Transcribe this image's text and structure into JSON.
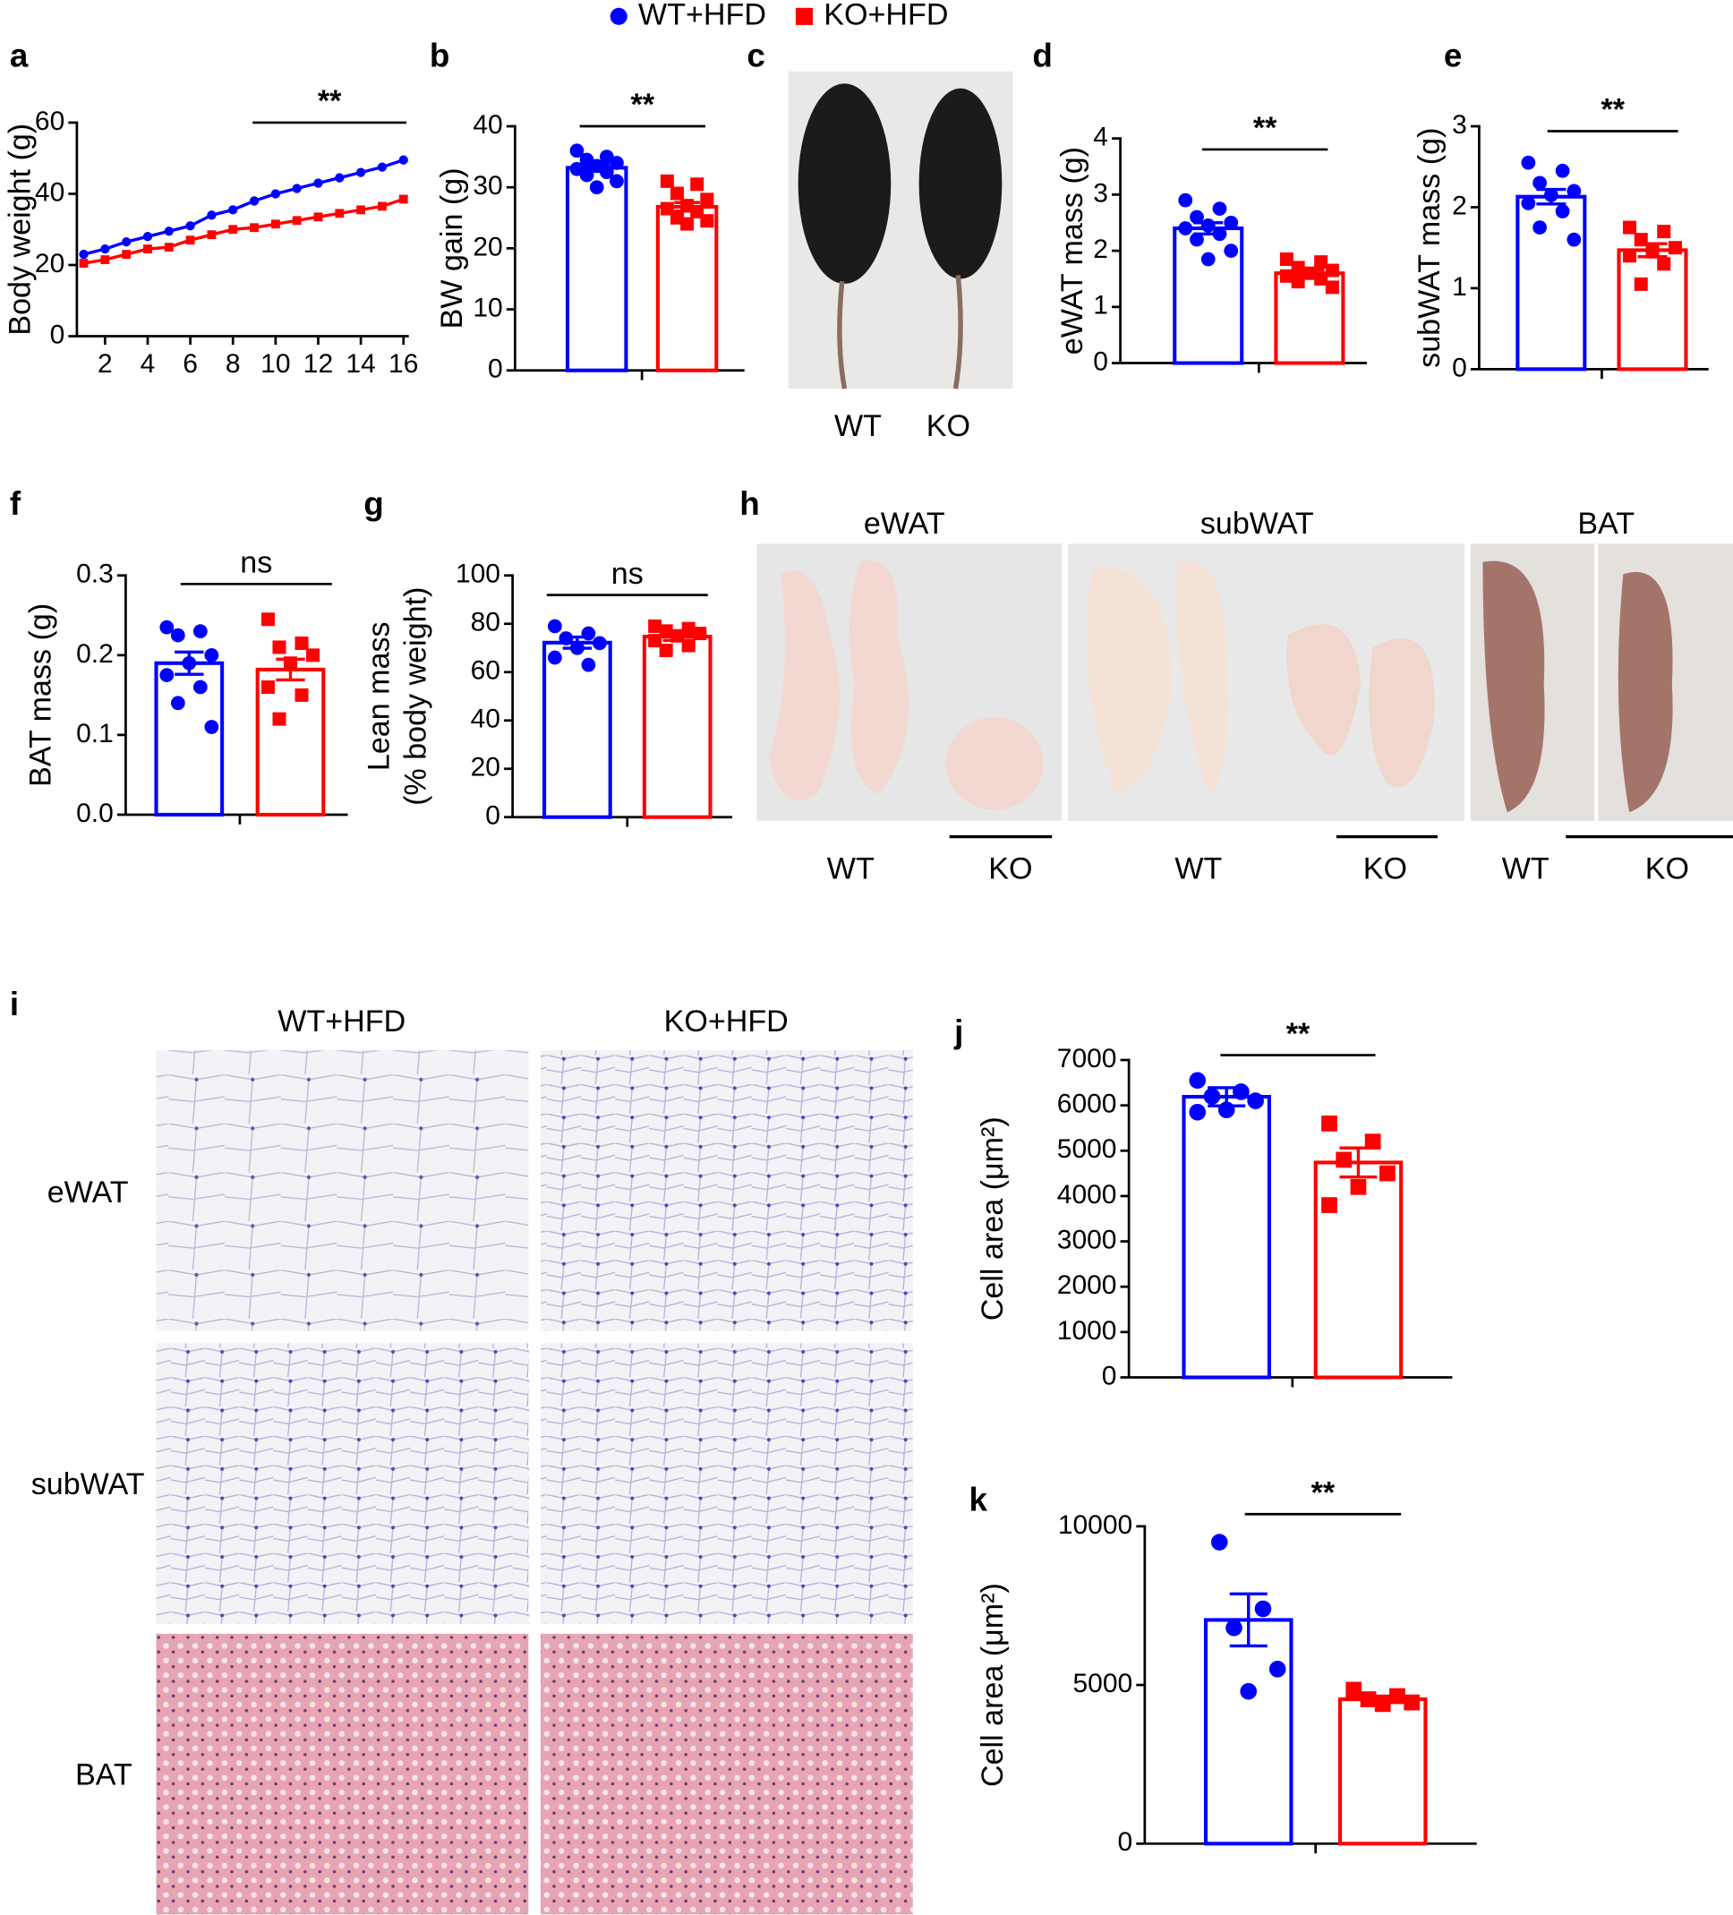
{
  "legend": [
    {
      "name": "WT+HFD",
      "color": "#0000ff",
      "marker": "circle"
    },
    {
      "name": "KO+HFD",
      "color": "#ff0000",
      "marker": "square"
    }
  ],
  "chart_data": [
    {
      "panel": "a",
      "type": "line",
      "ylabel": "Body weight (g)",
      "x": [
        1,
        2,
        3,
        4,
        5,
        6,
        7,
        8,
        9,
        10,
        11,
        12,
        13,
        14,
        15,
        16
      ],
      "series": [
        {
          "color": "#0000ff",
          "values": [
            23,
            24.5,
            26.5,
            28,
            29.5,
            31,
            34,
            35.5,
            38,
            40,
            41.5,
            43,
            44.5,
            46,
            47.5,
            49.5
          ]
        },
        {
          "color": "#ff0000",
          "values": [
            20.5,
            21.5,
            23,
            24.5,
            25,
            27,
            28.5,
            30,
            30.5,
            31.5,
            32.5,
            33.5,
            34.5,
            35.5,
            36.5,
            38.5
          ]
        }
      ],
      "xlim": [
        1,
        16
      ],
      "xticks": [
        2,
        4,
        6,
        8,
        10,
        12,
        14,
        16
      ],
      "ylim": [
        0,
        60
      ],
      "yticks": [
        0,
        20,
        40,
        60
      ],
      "annotation": "**"
    },
    {
      "panel": "b",
      "type": "bar",
      "ylabel": "BW gain (g)",
      "series": [
        {
          "color": "#0000ff",
          "values": [
            33.2
          ],
          "errors": [
            0.6
          ],
          "points": [
            36,
            35,
            34.5,
            34,
            33.5,
            33,
            32.5,
            32,
            31,
            30
          ]
        },
        {
          "color": "#ff0000",
          "values": [
            26.8
          ],
          "errors": [
            0.7
          ],
          "points": [
            31,
            30.5,
            29,
            28,
            27,
            26.5,
            26,
            25,
            24.5,
            24
          ]
        }
      ],
      "ylim": [
        0,
        40
      ],
      "yticks": [
        0,
        10,
        20,
        30,
        40
      ],
      "annotation": "**"
    },
    {
      "panel": "d",
      "type": "bar",
      "ylabel": "eWAT mass (g)",
      "series": [
        {
          "color": "#0000ff",
          "values": [
            2.4
          ],
          "errors": [
            0.1
          ],
          "points": [
            2.9,
            2.75,
            2.6,
            2.5,
            2.45,
            2.4,
            2.3,
            2.2,
            2.0,
            1.85
          ]
        },
        {
          "color": "#ff0000",
          "values": [
            1.6
          ],
          "errors": [
            0.06
          ],
          "points": [
            1.85,
            1.8,
            1.7,
            1.65,
            1.6,
            1.55,
            1.5,
            1.45,
            1.35
          ]
        }
      ],
      "ylim": [
        0,
        4
      ],
      "yticks": [
        0,
        1,
        2,
        3,
        4
      ],
      "annotation": "**"
    },
    {
      "panel": "e",
      "type": "bar",
      "ylabel": "subWAT mass (g)",
      "series": [
        {
          "color": "#0000ff",
          "values": [
            2.13
          ],
          "errors": [
            0.09
          ],
          "points": [
            2.55,
            2.45,
            2.3,
            2.2,
            2.15,
            2.05,
            1.95,
            1.75,
            1.6
          ]
        },
        {
          "color": "#ff0000",
          "values": [
            1.47
          ],
          "errors": [
            0.08
          ],
          "points": [
            1.75,
            1.7,
            1.6,
            1.5,
            1.45,
            1.4,
            1.3,
            1.05
          ]
        }
      ],
      "ylim": [
        0,
        3
      ],
      "yticks": [
        0,
        1,
        2,
        3
      ],
      "annotation": "**"
    },
    {
      "panel": "f",
      "type": "bar",
      "ylabel": "BAT mass (g)",
      "series": [
        {
          "color": "#0000ff",
          "values": [
            0.19
          ],
          "errors": [
            0.014
          ],
          "points": [
            0.235,
            0.23,
            0.225,
            0.2,
            0.19,
            0.175,
            0.16,
            0.14,
            0.11
          ]
        },
        {
          "color": "#ff0000",
          "values": [
            0.182
          ],
          "errors": [
            0.013
          ],
          "points": [
            0.245,
            0.215,
            0.21,
            0.2,
            0.19,
            0.16,
            0.15,
            0.12
          ]
        }
      ],
      "ylim": [
        0,
        0.3
      ],
      "yticks": [
        {
          "value": 0,
          "label": "0.0"
        },
        0.1,
        0.2,
        0.3
      ],
      "annotation": "ns"
    },
    {
      "panel": "g",
      "type": "bar",
      "ylabel": [
        "Lean mass",
        "(% body weight)"
      ],
      "series": [
        {
          "color": "#0000ff",
          "values": [
            72.2
          ],
          "errors": [
            2.3
          ],
          "points": [
            79,
            76,
            74,
            72,
            70,
            66,
            63
          ]
        },
        {
          "color": "#ff0000",
          "values": [
            74.7
          ],
          "errors": [
            1.6
          ],
          "points": [
            79,
            78,
            77,
            76,
            75,
            73,
            71,
            69
          ]
        }
      ],
      "ylim": [
        0,
        100
      ],
      "yticks": [
        0,
        20,
        40,
        60,
        80,
        100
      ],
      "annotation": "ns"
    },
    {
      "panel": "j",
      "type": "bar",
      "ylabel": "Cell area (μm²)",
      "series": [
        {
          "color": "#0000ff",
          "values": [
            6190
          ],
          "errors": [
            200
          ],
          "points": [
            6550,
            6300,
            6200,
            6100,
            5900,
            5850
          ]
        },
        {
          "color": "#ff0000",
          "values": [
            4740
          ],
          "errors": [
            320
          ],
          "points": [
            5600,
            5200,
            4800,
            4500,
            4200,
            3800
          ]
        }
      ],
      "ylim": [
        0,
        7000
      ],
      "yticks": [
        0,
        1000,
        2000,
        3000,
        4000,
        5000,
        6000,
        7000
      ],
      "annotation": "**"
    },
    {
      "panel": "k",
      "type": "bar",
      "ylabel": "Cell area (μm²)",
      "series": [
        {
          "color": "#0000ff",
          "values": [
            7050
          ],
          "errors": [
            820
          ],
          "points": [
            9500,
            7400,
            6800,
            5500,
            4800
          ]
        },
        {
          "color": "#ff0000",
          "values": [
            4550
          ],
          "errors": [
            100
          ],
          "points": [
            4850,
            4650,
            4550,
            4450,
            4400
          ]
        }
      ],
      "ylim": [
        0,
        10000
      ],
      "yticks": [
        0,
        5000,
        10000
      ],
      "annotation": "**"
    }
  ],
  "photos": {
    "c": {
      "panel": "c",
      "labels": [
        "WT",
        "KO"
      ]
    },
    "h": {
      "panel": "h",
      "titles": [
        "eWAT",
        "subWAT",
        "BAT"
      ],
      "labels": [
        "WT",
        "KO",
        "WT",
        "KO",
        "WT",
        "KO"
      ]
    },
    "i": {
      "panel": "i",
      "columns": [
        "WT+HFD",
        "KO+HFD"
      ],
      "rows": [
        "eWAT",
        "subWAT",
        "BAT"
      ]
    }
  }
}
